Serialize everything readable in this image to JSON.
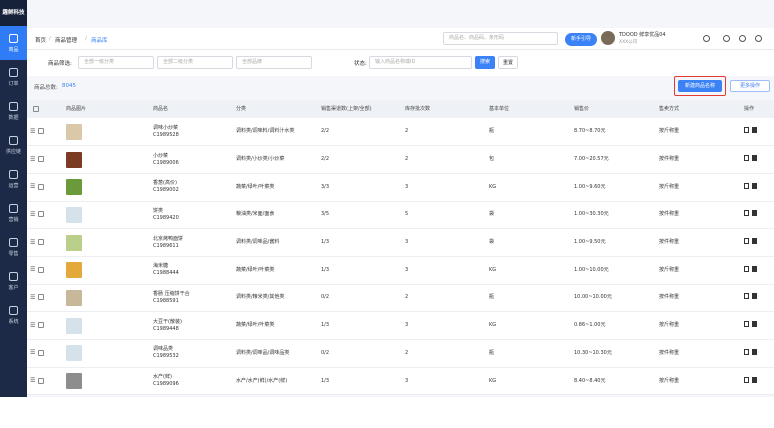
{
  "sidebar": {
    "logo": "趣鲜科技",
    "items": [
      "商品",
      "订单",
      "数据",
      "供应链",
      "运营",
      "营销",
      "零售",
      "客户",
      "系统"
    ]
  },
  "header": {
    "breadcrumb": [
      "首页",
      "商品管理",
      "商品库"
    ],
    "search_placeholder": "商品名、商品码、条形码",
    "guide_button": "新手引导",
    "user_name": "TDOOD 鲜享优品04",
    "user_sub": "XXX公司"
  },
  "filters": {
    "label": "商品筛选:",
    "selects": [
      "全部一级分类",
      "全部二级分类",
      "全部品牌"
    ],
    "status_label": "状态:",
    "status_placeholder": "输入商品名称或ID",
    "search_button": "搜索",
    "reset_button": "重置"
  },
  "toolbar": {
    "total_label": "商品总数:",
    "total_value": "8045",
    "new_button": "新建商品名称",
    "more_button": "更多操作"
  },
  "table": {
    "columns": [
      "商品图片",
      "商品名",
      "分类",
      "销售渠道数(上架/全部)",
      "库存批次数",
      "基本单位",
      "销售价",
      "售卖方式",
      "操作"
    ],
    "rows": [
      [
        "调味小炒菜",
        "C1989528",
        "调料类/调味料/调料汁水类",
        "2/2",
        "2",
        "瓶",
        "8.70~8.70元",
        "按斤称重"
      ],
      [
        "小炒菜",
        "C1989006",
        "调料类/小炒类/小炒菜",
        "2/2",
        "2",
        "包",
        "7.00~20.57元",
        "按件称重"
      ],
      [
        "香葱(高价)",
        "C1989002",
        "蔬菜/绿叶/叶菜类",
        "3/3",
        "3",
        "KG",
        "1.00~9.60元",
        "按斤称重"
      ],
      [
        "饼类",
        "C1989420",
        "粮油类/米面/面食",
        "3/5",
        "5",
        "袋",
        "1.00~30.30元",
        "按件称重"
      ],
      [
        "北京烤鸭面饼",
        "C1989611",
        "调料类/调味品/酱料",
        "1/3",
        "3",
        "袋",
        "1.00~9.50元",
        "按件称重"
      ],
      [
        "海米糖",
        "C1988444",
        "蔬菜/绿叶/叶菜类",
        "1/3",
        "3",
        "KG",
        "1.00~10.00元",
        "按斤称重"
      ],
      [
        "香肠 压缩饼干合",
        "C1988591",
        "调料类/粮米类/其他类",
        "0/2",
        "2",
        "瓶",
        "10.00~10.00元",
        "按件称重"
      ],
      [
        "大豆干(散装)",
        "C1989448",
        "蔬菜/绿叶/叶菜类",
        "1/3",
        "3",
        "KG",
        "0.86~1.00元",
        "按斤称重"
      ],
      [
        "调味品类",
        "C1989532",
        "调料类/调味品/调味品类",
        "0/2",
        "2",
        "瓶",
        "10.30~10.30元",
        "按件称重"
      ],
      [
        "水产(鲜)",
        "C1989096",
        "水产/水产(鲜)/水产(鲜)",
        "1/3",
        "3",
        "KG",
        "8.40~8.40元",
        "按斤称重"
      ]
    ]
  }
}
